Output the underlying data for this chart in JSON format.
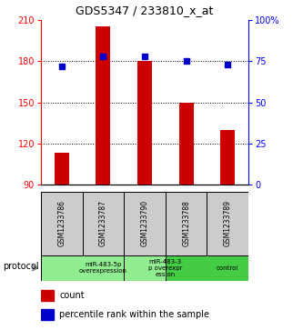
{
  "title": "GDS5347 / 233810_x_at",
  "samples": [
    "GSM1233786",
    "GSM1233787",
    "GSM1233790",
    "GSM1233788",
    "GSM1233789"
  ],
  "bar_values": [
    113,
    205,
    180,
    150,
    130
  ],
  "percentile_values": [
    72,
    78,
    78,
    75,
    73
  ],
  "bar_color": "#cc0000",
  "dot_color": "#0000cc",
  "ylim_left": [
    90,
    210
  ],
  "ylim_right": [
    0,
    100
  ],
  "yticks_left": [
    90,
    120,
    150,
    180,
    210
  ],
  "yticks_right": [
    0,
    25,
    50,
    75,
    100
  ],
  "ytick_labels_right": [
    "0",
    "25",
    "50",
    "75",
    "100%"
  ],
  "grid_values": [
    120,
    150,
    180
  ],
  "groups": [
    {
      "label": "miR-483-5p\noverexpression",
      "start": 0,
      "end": 2,
      "color": "#90ee90"
    },
    {
      "label": "miR-483-3\np overexpr\nession",
      "start": 2,
      "end": 3,
      "color": "#90ee90"
    },
    {
      "label": "control",
      "start": 3,
      "end": 5,
      "color": "#44cc44"
    }
  ],
  "protocol_label": "protocol",
  "legend_items": [
    {
      "color": "#cc0000",
      "label": "count"
    },
    {
      "color": "#0000cc",
      "label": "percentile rank within the sample"
    }
  ],
  "sample_box_color": "#cccccc",
  "spine_color": "#000000"
}
